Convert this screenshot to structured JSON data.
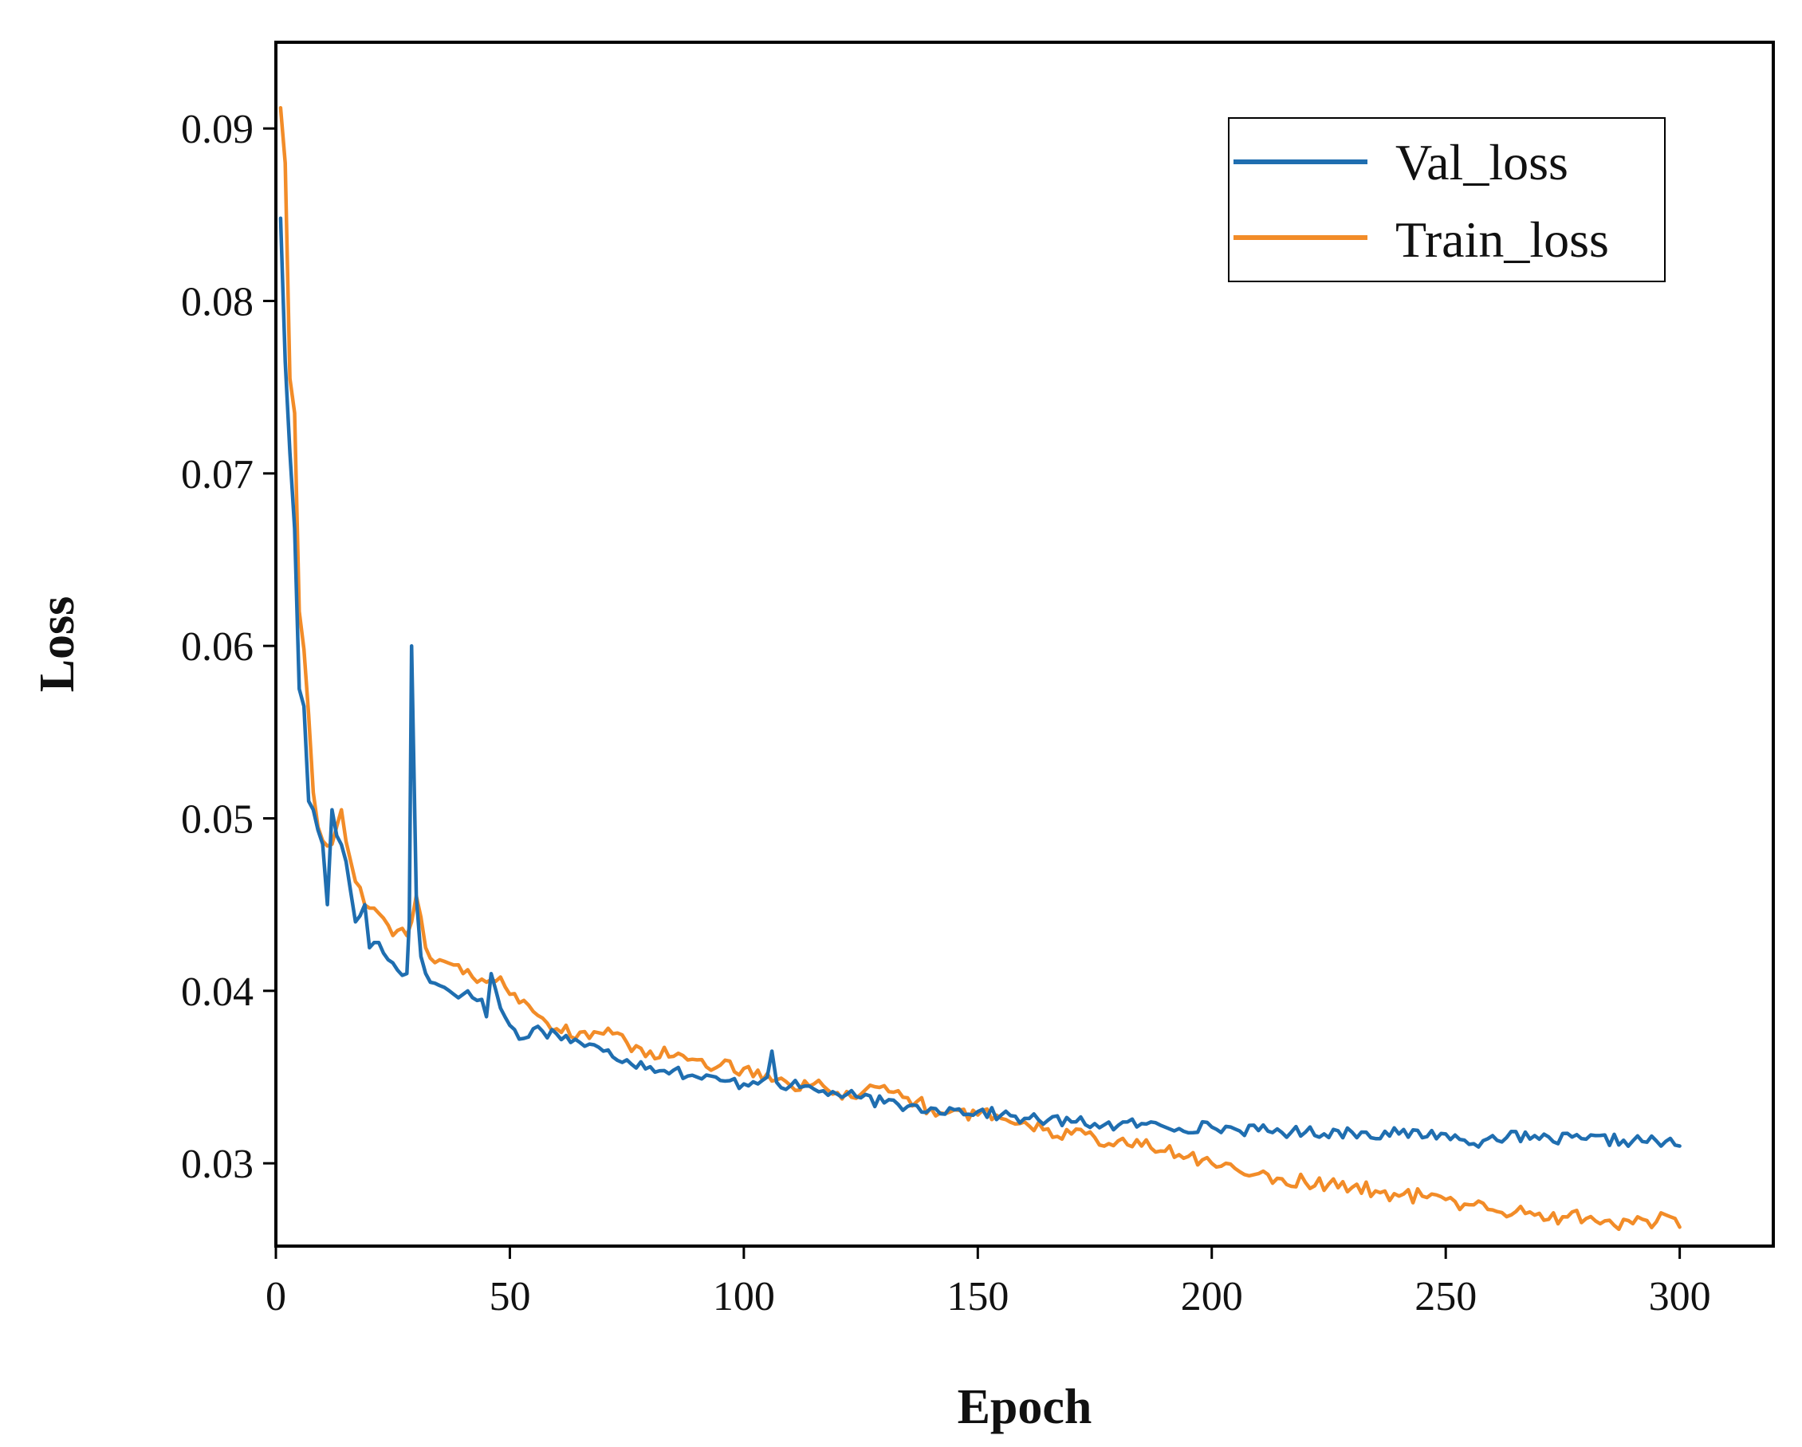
{
  "chart_data": {
    "type": "line",
    "title": "",
    "xlabel": "Epoch",
    "ylabel": "Loss",
    "xlim": [
      0,
      320
    ],
    "ylim": [
      0.0252,
      0.095
    ],
    "xticks": [
      0,
      50,
      100,
      150,
      200,
      250,
      300
    ],
    "xtick_labels": [
      "0",
      "50",
      "100",
      "150",
      "200",
      "250",
      "300"
    ],
    "yticks": [
      0.03,
      0.04,
      0.05,
      0.06,
      0.07,
      0.08,
      0.09
    ],
    "ytick_labels": [
      "0.03",
      "0.04",
      "0.05",
      "0.06",
      "0.07",
      "0.08",
      "0.09"
    ],
    "grid": false,
    "legend_position": "top-right",
    "series": [
      {
        "name": "Val_loss",
        "color": "#1f6eb0",
        "anchors": [
          [
            1,
            0.0848
          ],
          [
            2,
            0.0765
          ],
          [
            3,
            0.0712
          ],
          [
            4,
            0.0668
          ],
          [
            5,
            0.0575
          ],
          [
            6,
            0.0565
          ],
          [
            7,
            0.051
          ],
          [
            8,
            0.0505
          ],
          [
            10,
            0.0485
          ],
          [
            11,
            0.045
          ],
          [
            12,
            0.0505
          ],
          [
            13,
            0.049
          ],
          [
            15,
            0.0475
          ],
          [
            17,
            0.044
          ],
          [
            19,
            0.045
          ],
          [
            20,
            0.0425
          ],
          [
            22,
            0.0428
          ],
          [
            24,
            0.0418
          ],
          [
            26,
            0.0412
          ],
          [
            28,
            0.041
          ],
          [
            28.5,
            0.044
          ],
          [
            29,
            0.06
          ],
          [
            30,
            0.0455
          ],
          [
            31,
            0.042
          ],
          [
            33,
            0.0405
          ],
          [
            36,
            0.0402
          ],
          [
            40,
            0.0398
          ],
          [
            44,
            0.0395
          ],
          [
            45,
            0.0385
          ],
          [
            46,
            0.041
          ],
          [
            48,
            0.039
          ],
          [
            50,
            0.038
          ],
          [
            52,
            0.0372
          ],
          [
            55,
            0.0378
          ],
          [
            60,
            0.0375
          ],
          [
            65,
            0.037
          ],
          [
            70,
            0.0365
          ],
          [
            75,
            0.036
          ],
          [
            80,
            0.0356
          ],
          [
            85,
            0.0354
          ],
          [
            90,
            0.035
          ],
          [
            95,
            0.0348
          ],
          [
            100,
            0.0346
          ],
          [
            105,
            0.035
          ],
          [
            106,
            0.0365
          ],
          [
            107,
            0.0347
          ],
          [
            110,
            0.0345
          ],
          [
            115,
            0.0343
          ],
          [
            120,
            0.034
          ],
          [
            125,
            0.0338
          ],
          [
            130,
            0.0335
          ],
          [
            135,
            0.0333
          ],
          [
            140,
            0.0332
          ],
          [
            145,
            0.0331
          ],
          [
            150,
            0.033
          ],
          [
            155,
            0.0328
          ],
          [
            160,
            0.0326
          ],
          [
            165,
            0.0325
          ],
          [
            170,
            0.0324
          ],
          [
            175,
            0.0323
          ],
          [
            180,
            0.0322
          ],
          [
            185,
            0.0323
          ],
          [
            190,
            0.0321
          ],
          [
            200,
            0.0321
          ],
          [
            210,
            0.0319
          ],
          [
            220,
            0.0318
          ],
          [
            230,
            0.0318
          ],
          [
            240,
            0.0317
          ],
          [
            250,
            0.0317
          ],
          [
            255,
            0.0311
          ],
          [
            260,
            0.0316
          ],
          [
            270,
            0.0314
          ],
          [
            280,
            0.0314
          ],
          [
            290,
            0.0313
          ],
          [
            295,
            0.0313
          ],
          [
            300,
            0.031
          ]
        ]
      },
      {
        "name": "Train_loss",
        "color": "#f28c28",
        "anchors": [
          [
            1,
            0.0912
          ],
          [
            2,
            0.088
          ],
          [
            3,
            0.0755
          ],
          [
            4,
            0.0735
          ],
          [
            5,
            0.062
          ],
          [
            6,
            0.0598
          ],
          [
            7,
            0.056
          ],
          [
            8,
            0.0515
          ],
          [
            9,
            0.0495
          ],
          [
            10,
            0.0487
          ],
          [
            12,
            0.0485
          ],
          [
            14,
            0.0505
          ],
          [
            16,
            0.0475
          ],
          [
            18,
            0.046
          ],
          [
            20,
            0.0448
          ],
          [
            22,
            0.0445
          ],
          [
            24,
            0.0438
          ],
          [
            26,
            0.0435
          ],
          [
            28,
            0.0432
          ],
          [
            29,
            0.044
          ],
          [
            30,
            0.0455
          ],
          [
            32,
            0.0425
          ],
          [
            35,
            0.0418
          ],
          [
            38,
            0.0415
          ],
          [
            40,
            0.041
          ],
          [
            43,
            0.0405
          ],
          [
            45,
            0.0405
          ],
          [
            48,
            0.0408
          ],
          [
            50,
            0.0398
          ],
          [
            55,
            0.0388
          ],
          [
            60,
            0.0378
          ],
          [
            65,
            0.0376
          ],
          [
            70,
            0.0375
          ],
          [
            75,
            0.037
          ],
          [
            80,
            0.0365
          ],
          [
            85,
            0.0362
          ],
          [
            90,
            0.036
          ],
          [
            95,
            0.0357
          ],
          [
            100,
            0.0355
          ],
          [
            105,
            0.0352
          ],
          [
            110,
            0.0345
          ],
          [
            115,
            0.0346
          ],
          [
            120,
            0.0341
          ],
          [
            125,
            0.034
          ],
          [
            130,
            0.0345
          ],
          [
            135,
            0.0338
          ],
          [
            140,
            0.0332
          ],
          [
            145,
            0.0331
          ],
          [
            150,
            0.0328
          ],
          [
            155,
            0.0326
          ],
          [
            160,
            0.0324
          ],
          [
            165,
            0.032
          ],
          [
            170,
            0.0317
          ],
          [
            175,
            0.0315
          ],
          [
            180,
            0.0313
          ],
          [
            185,
            0.031
          ],
          [
            190,
            0.0307
          ],
          [
            195,
            0.0304
          ],
          [
            200,
            0.03
          ],
          [
            205,
            0.0297
          ],
          [
            210,
            0.0294
          ],
          [
            215,
            0.0291
          ],
          [
            220,
            0.0289
          ],
          [
            225,
            0.0288
          ],
          [
            230,
            0.0286
          ],
          [
            235,
            0.0284
          ],
          [
            240,
            0.0281
          ],
          [
            245,
            0.0281
          ],
          [
            250,
            0.0279
          ],
          [
            255,
            0.0276
          ],
          [
            260,
            0.0273
          ],
          [
            265,
            0.0272
          ],
          [
            270,
            0.0271
          ],
          [
            275,
            0.0269
          ],
          [
            280,
            0.0268
          ],
          [
            285,
            0.0267
          ],
          [
            290,
            0.0265
          ],
          [
            295,
            0.0266
          ],
          [
            298,
            0.0269
          ],
          [
            300,
            0.0263
          ]
        ]
      }
    ]
  }
}
